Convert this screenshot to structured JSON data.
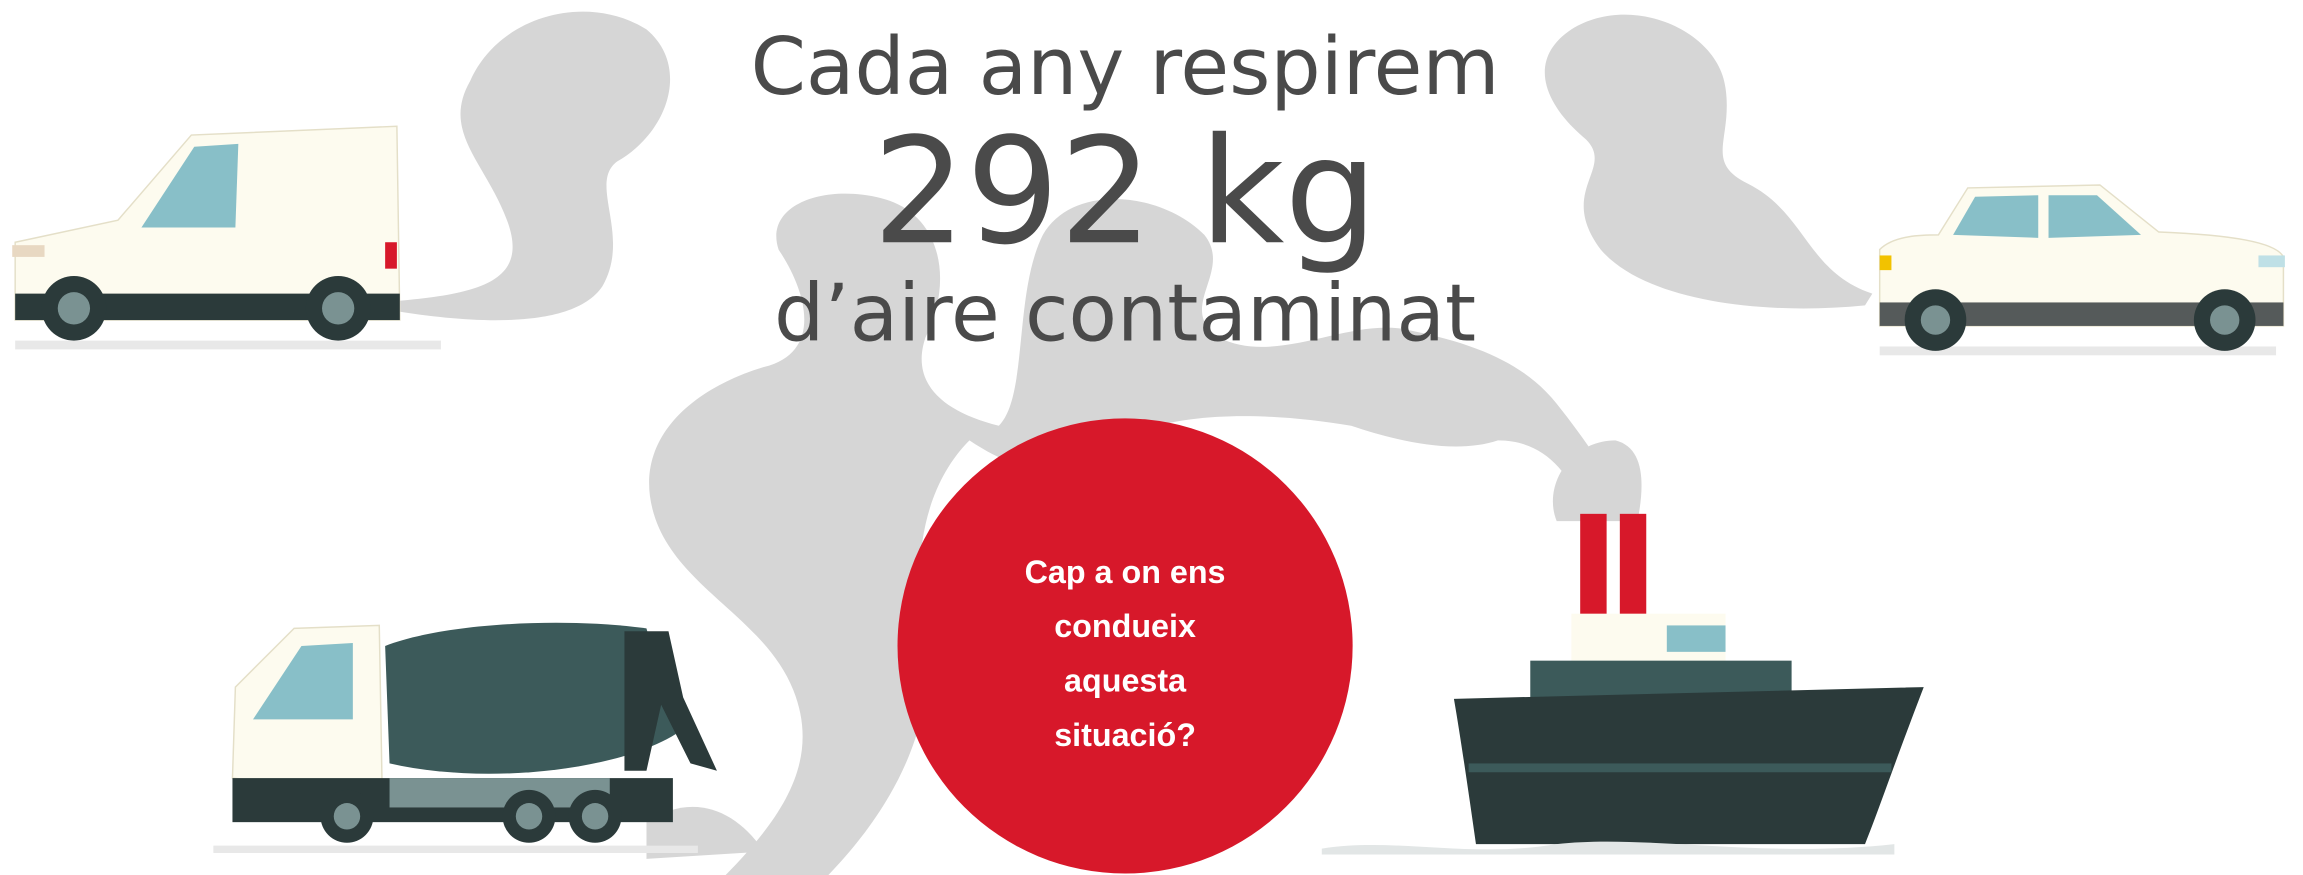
{
  "headline": {
    "lines": [
      "Cada any respirem",
      "292 kg",
      "d’aire contaminat"
    ]
  },
  "callout": {
    "lines": [
      "Cap a on ens",
      "condueix",
      "aquesta",
      "situació?"
    ]
  }
}
